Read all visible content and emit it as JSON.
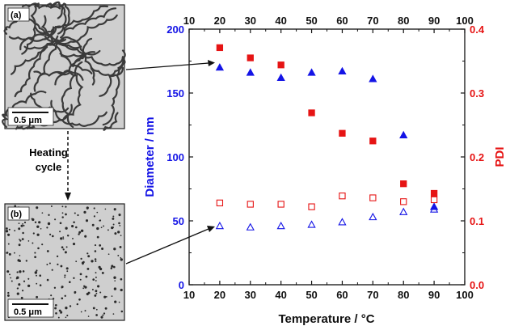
{
  "colors": {
    "diameter": "#1414e6",
    "pdi": "#e61414",
    "micrograph_bg": "#cfcfcf"
  },
  "panels": {
    "a": {
      "label": "(a)",
      "scale_bar": "0.5 μm",
      "morphology": "worm-like micelle network"
    },
    "b": {
      "label": "(b)",
      "scale_bar": "0.5 μm",
      "morphology": "dispersed small particles"
    }
  },
  "heating_cycle": {
    "line1": "Heating",
    "line2": "cycle"
  },
  "chart_data": {
    "type": "scatter",
    "xlabel": "Temperature / °C",
    "ylabel_left": "Diameter / nm",
    "ylabel_right": "PDI",
    "xlim": [
      10,
      100
    ],
    "ylim_left": [
      0,
      200
    ],
    "ylim_right": [
      0.0,
      0.4
    ],
    "x_ticks": [
      "10",
      "20",
      "30",
      "40",
      "50",
      "60",
      "70",
      "80",
      "90",
      "100"
    ],
    "y_left_ticks": [
      "0",
      "50",
      "100",
      "150",
      "200"
    ],
    "y_right_ticks": [
      "0.0",
      "0.1",
      "0.2",
      "0.3",
      "0.4"
    ],
    "top_axis_mirrors_x": true,
    "grid": false,
    "series": [
      {
        "axis": "left",
        "marker": "triangle-filled",
        "color": "#1414e6",
        "x": [
          20,
          30,
          40,
          50,
          60,
          70,
          80,
          90
        ],
        "y": [
          170,
          166,
          162,
          166,
          167,
          161,
          117,
          61
        ]
      },
      {
        "axis": "left",
        "marker": "triangle-open",
        "color": "#1414e6",
        "x": [
          20,
          30,
          40,
          50,
          60,
          70,
          80,
          90
        ],
        "y": [
          46,
          45,
          46,
          47,
          49,
          53,
          57,
          59
        ]
      },
      {
        "axis": "right",
        "marker": "square-filled",
        "color": "#e61414",
        "x": [
          20,
          30,
          40,
          50,
          60,
          70,
          80,
          90
        ],
        "y": [
          0.371,
          0.355,
          0.344,
          0.269,
          0.237,
          0.225,
          0.158,
          0.143
        ]
      },
      {
        "axis": "right",
        "marker": "square-open",
        "color": "#e61414",
        "x": [
          20,
          30,
          40,
          50,
          60,
          70,
          80,
          90
        ],
        "y": [
          0.128,
          0.126,
          0.126,
          0.122,
          0.139,
          0.136,
          0.13,
          0.133
        ]
      }
    ]
  }
}
